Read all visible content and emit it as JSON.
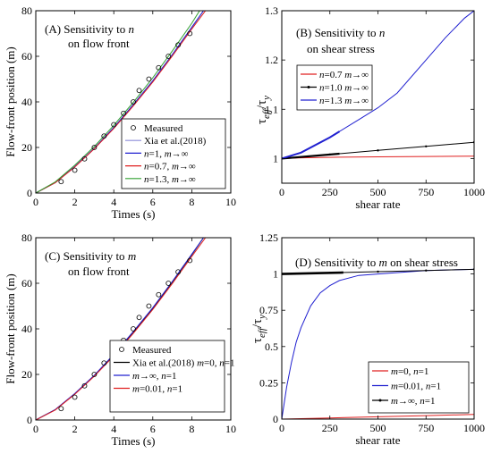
{
  "chart_data": [
    {
      "panel": "A",
      "type": "line",
      "annotation": [
        "(A) Sensitivity to n",
        "on flow front"
      ],
      "xlabel": "Times (s)",
      "ylabel": "Flow-front position (m)",
      "xlim": [
        0,
        10
      ],
      "ylim": [
        0,
        80
      ],
      "xticks": [
        0,
        2,
        4,
        6,
        8,
        10
      ],
      "yticks": [
        0,
        20,
        40,
        60,
        80
      ],
      "legend_position": "bottom-right",
      "scatter": {
        "name": "Measured",
        "points": [
          [
            1.3,
            5
          ],
          [
            2.0,
            10
          ],
          [
            2.5,
            15
          ],
          [
            3.0,
            20
          ],
          [
            3.5,
            25
          ],
          [
            4.0,
            30
          ],
          [
            4.5,
            35
          ],
          [
            5.0,
            40
          ],
          [
            5.3,
            45
          ],
          [
            5.8,
            50
          ],
          [
            6.3,
            55
          ],
          [
            6.8,
            60
          ],
          [
            7.3,
            65
          ],
          [
            7.9,
            70
          ]
        ]
      },
      "series": [
        {
          "name": "Xia et al.(2018)",
          "color": "#8c8cd8",
          "points": [
            [
              0,
              0
            ],
            [
              1,
              4.5
            ],
            [
              2,
              11.5
            ],
            [
              3,
              19.5
            ],
            [
              4,
              28.5
            ],
            [
              5,
              38.5
            ],
            [
              6,
              49
            ],
            [
              7,
              60.5
            ],
            [
              8,
              72.5
            ],
            [
              8.6,
              80
            ]
          ]
        },
        {
          "name": "n=1, m→∞",
          "color": "#2020d0",
          "points": [
            [
              0,
              0
            ],
            [
              1,
              4.6
            ],
            [
              2,
              11.6
            ],
            [
              3,
              19.6
            ],
            [
              4,
              28.8
            ],
            [
              5,
              38.8
            ],
            [
              6,
              49.3
            ],
            [
              7,
              60.8
            ],
            [
              8,
              72.8
            ],
            [
              8.6,
              80
            ]
          ]
        },
        {
          "name": "n=0.7, m→∞",
          "color": "#e02020",
          "points": [
            [
              0,
              0
            ],
            [
              1,
              4.5
            ],
            [
              2,
              11.4
            ],
            [
              3,
              19.4
            ],
            [
              4,
              28.3
            ],
            [
              5,
              38.2
            ],
            [
              6,
              48.7
            ],
            [
              7,
              60.1
            ],
            [
              8,
              72
            ],
            [
              8.7,
              80
            ]
          ]
        },
        {
          "name": "n=1.3, m→∞",
          "color": "#30a030",
          "points": [
            [
              0,
              0
            ],
            [
              1,
              4.9
            ],
            [
              2,
              12.2
            ],
            [
              3,
              20.4
            ],
            [
              4,
              29.7
            ],
            [
              5,
              39.8
            ],
            [
              6,
              50.6
            ],
            [
              7,
              62.3
            ],
            [
              8,
              74.5
            ],
            [
              8.4,
              80
            ]
          ]
        }
      ]
    },
    {
      "panel": "B",
      "type": "line",
      "annotation": [
        "(B) Sensitivity to n",
        "on shear stress"
      ],
      "xlabel": "shear rate",
      "ylabel": "τeff/τy",
      "xlim": [
        0,
        1000
      ],
      "ylim": [
        0.95,
        1.3
      ],
      "xticks": [
        0,
        250,
        500,
        750,
        1000
      ],
      "yticks": [
        1,
        1.1,
        1.2,
        1.3
      ],
      "legend_position": "middle-left",
      "series": [
        {
          "name": "n=0.7 m→∞",
          "color": "#e02020",
          "points": [
            [
              0,
              1.0
            ],
            [
              100,
              1.0015
            ],
            [
              300,
              1.0028
            ],
            [
              500,
              1.0035
            ],
            [
              750,
              1.0042
            ],
            [
              1000,
              1.0047
            ]
          ]
        },
        {
          "name": "n=1.0 m→∞",
          "color": "#000000",
          "points": [
            [
              0,
              1.0
            ],
            [
              250,
              1.0082
            ],
            [
              500,
              1.0165
            ],
            [
              750,
              1.0247
            ],
            [
              1000,
              1.033
            ]
          ]
        },
        {
          "name": "n=1.3 m→∞",
          "color": "#2020d0",
          "points": [
            [
              0,
              1.0
            ],
            [
              100,
              1.012
            ],
            [
              250,
              1.043
            ],
            [
              400,
              1.079
            ],
            [
              500,
              1.103
            ],
            [
              600,
              1.133
            ],
            [
              750,
              1.2
            ],
            [
              850,
              1.245
            ],
            [
              950,
              1.285
            ],
            [
              1000,
              1.3
            ]
          ]
        }
      ]
    },
    {
      "panel": "C",
      "type": "line",
      "annotation": [
        "(C) Sensitivity to m",
        "on flow front"
      ],
      "xlabel": "Times (s)",
      "ylabel": "Flow-front position (m)",
      "xlim": [
        0,
        10
      ],
      "ylim": [
        0,
        80
      ],
      "xticks": [
        0,
        2,
        4,
        6,
        8,
        10
      ],
      "yticks": [
        0,
        20,
        40,
        60,
        80
      ],
      "legend_position": "bottom-right",
      "scatter": {
        "name": "Measured",
        "points": [
          [
            1.3,
            5
          ],
          [
            2.0,
            10
          ],
          [
            2.5,
            15
          ],
          [
            3.0,
            20
          ],
          [
            3.5,
            25
          ],
          [
            4.0,
            30
          ],
          [
            4.5,
            35
          ],
          [
            5.0,
            40
          ],
          [
            5.3,
            45
          ],
          [
            5.8,
            50
          ],
          [
            6.3,
            55
          ],
          [
            6.8,
            60
          ],
          [
            7.3,
            65
          ],
          [
            7.9,
            70
          ]
        ]
      },
      "series": [
        {
          "name": "Xia et al.(2018) m=0, n=1",
          "color": "#000000",
          "points": [
            [
              0,
              0
            ],
            [
              1,
              4.5
            ],
            [
              2,
              11.5
            ],
            [
              3,
              19.5
            ],
            [
              4,
              28.5
            ],
            [
              5,
              38.5
            ],
            [
              6,
              49
            ],
            [
              7,
              60.5
            ],
            [
              8,
              72.5
            ],
            [
              8.6,
              80
            ]
          ]
        },
        {
          "name": "m→∞, n=1",
          "color": "#2020d0",
          "points": [
            [
              0,
              0
            ],
            [
              1,
              4.6
            ],
            [
              2,
              11.6
            ],
            [
              3,
              19.6
            ],
            [
              4,
              28.8
            ],
            [
              5,
              38.8
            ],
            [
              6,
              49.3
            ],
            [
              7,
              60.8
            ],
            [
              8,
              72.8
            ],
            [
              8.6,
              80
            ]
          ]
        },
        {
          "name": "m=0.01, n=1",
          "color": "#e02020",
          "points": [
            [
              0,
              0
            ],
            [
              1,
              4.4
            ],
            [
              2,
              11.3
            ],
            [
              3,
              19.2
            ],
            [
              4,
              28.1
            ],
            [
              5,
              38
            ],
            [
              6,
              48.5
            ],
            [
              7,
              59.9
            ],
            [
              8,
              71.8
            ],
            [
              8.7,
              80
            ]
          ]
        }
      ]
    },
    {
      "panel": "D",
      "type": "line",
      "annotation": [
        "(D) Sensitivity to m on shear stress"
      ],
      "xlabel": "shear rate",
      "ylabel": "τeff/τy",
      "xlim": [
        0,
        1000
      ],
      "ylim": [
        0,
        1.25
      ],
      "xticks": [
        0,
        250,
        500,
        750,
        1000
      ],
      "yticks": [
        0,
        0.25,
        0.5,
        0.75,
        1,
        1.25
      ],
      "legend_position": "bottom-right",
      "series": [
        {
          "name": "m=0, n=1",
          "color": "#e02020",
          "points": [
            [
              0,
              0.0
            ],
            [
              250,
              0.008
            ],
            [
              500,
              0.016
            ],
            [
              750,
              0.024
            ],
            [
              1000,
              0.032
            ]
          ]
        },
        {
          "name": "m=0.01, n=1",
          "color": "#2020d0",
          "points": [
            [
              0,
              0.0
            ],
            [
              25,
              0.22
            ],
            [
              50,
              0.39
            ],
            [
              75,
              0.53
            ],
            [
              100,
              0.63
            ],
            [
              150,
              0.78
            ],
            [
              200,
              0.87
            ],
            [
              250,
              0.92
            ],
            [
              300,
              0.955
            ],
            [
              400,
              0.99
            ],
            [
              500,
              1.0
            ],
            [
              750,
              1.024
            ],
            [
              1000,
              1.032
            ]
          ]
        },
        {
          "name": "m→∞, n=1",
          "color": "#000000",
          "points": [
            [
              0,
              1.0
            ],
            [
              250,
              1.008
            ],
            [
              500,
              1.016
            ],
            [
              750,
              1.024
            ],
            [
              1000,
              1.032
            ]
          ]
        }
      ]
    }
  ]
}
